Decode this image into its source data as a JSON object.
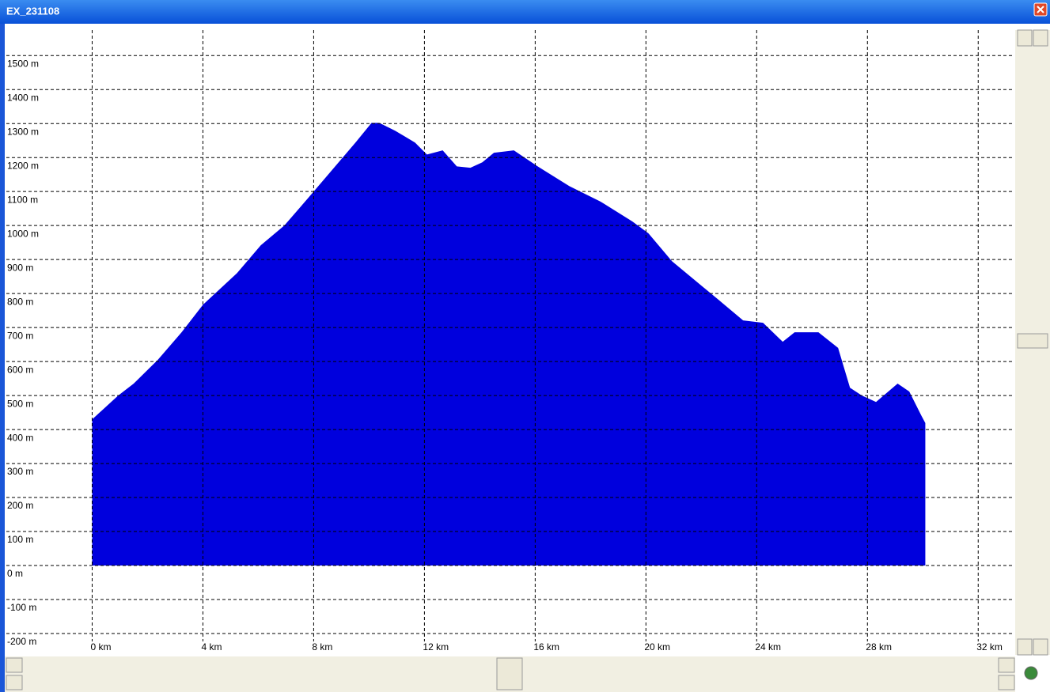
{
  "window": {
    "title": "EX_231108"
  },
  "chart_data": {
    "type": "area",
    "color": "#0000dd",
    "grid": true,
    "x": [
      0,
      0.94,
      1.5,
      2.37,
      3.23,
      4,
      5.23,
      6.09,
      6.94,
      7.8,
      8.66,
      9.51,
      10.09,
      10.37,
      10.94,
      11.66,
      12.09,
      12.66,
      13.17,
      13.66,
      14.09,
      14.51,
      15.23,
      16.09,
      17.23,
      18.37,
      19.51,
      20.09,
      20.94,
      21.8,
      22.66,
      23.51,
      24.23,
      24.94,
      25.37,
      26.23,
      26.94,
      27.37,
      27.8,
      28.31,
      29.09,
      29.51,
      29.94,
      30.09
    ],
    "values": [
      430,
      500,
      535,
      605,
      686,
      767,
      860,
      942,
      1000,
      1081,
      1163,
      1244,
      1302,
      1302,
      1279,
      1244,
      1209,
      1221,
      1174,
      1170,
      1186,
      1214,
      1221,
      1174,
      1116,
      1070,
      1012,
      977,
      895,
      837,
      779,
      721,
      714,
      658,
      686,
      686,
      640,
      523,
      500,
      481,
      535,
      512,
      442,
      419
    ],
    "xlim": [
      -3.1,
      33.25
    ],
    "ylim": [
      -200,
      1575
    ],
    "xticks": [
      {
        "value": 0,
        "label": "0 km"
      },
      {
        "value": 4,
        "label": "4 km"
      },
      {
        "value": 8,
        "label": "8 km"
      },
      {
        "value": 12,
        "label": "12 km"
      },
      {
        "value": 16,
        "label": "16 km"
      },
      {
        "value": 20,
        "label": "20 km"
      },
      {
        "value": 24,
        "label": "24 km"
      },
      {
        "value": 28,
        "label": "28 km"
      },
      {
        "value": 32,
        "label": "32 km"
      }
    ],
    "yticks": [
      {
        "value": -200,
        "label": "-200 m"
      },
      {
        "value": -100,
        "label": "-100 m"
      },
      {
        "value": 0,
        "label": "0 m"
      },
      {
        "value": 100,
        "label": "100 m"
      },
      {
        "value": 200,
        "label": "200 m"
      },
      {
        "value": 300,
        "label": "300 m"
      },
      {
        "value": 400,
        "label": "400 m"
      },
      {
        "value": 500,
        "label": "500 m"
      },
      {
        "value": 600,
        "label": "600 m"
      },
      {
        "value": 700,
        "label": "700 m"
      },
      {
        "value": 800,
        "label": "800 m"
      },
      {
        "value": 900,
        "label": "900 m"
      },
      {
        "value": 1000,
        "label": "1000 m"
      },
      {
        "value": 1100,
        "label": "1100 m"
      },
      {
        "value": 1200,
        "label": "1200 m"
      },
      {
        "value": 1300,
        "label": "1300 m"
      },
      {
        "value": 1400,
        "label": "1400 m"
      },
      {
        "value": 1500,
        "label": "1500 m"
      }
    ]
  }
}
